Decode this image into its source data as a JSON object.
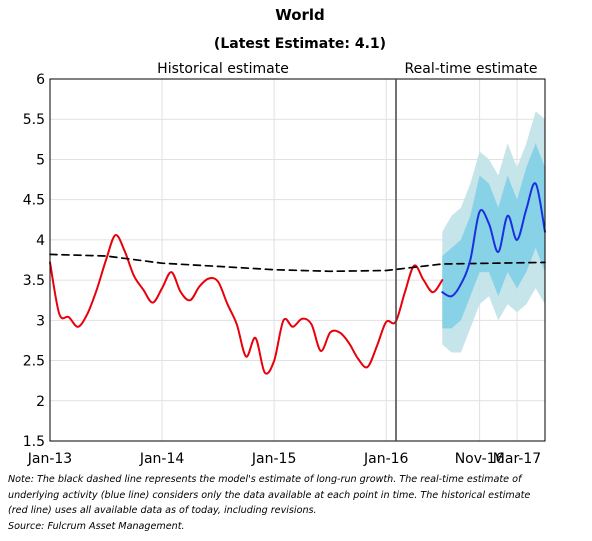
{
  "chart_data": {
    "type": "line",
    "title": "World",
    "subtitle": "(Latest Estimate: 4.1)",
    "panels": [
      "Historical estimate",
      "Real-time estimate"
    ],
    "ylim": [
      1.5,
      6
    ],
    "yticks": [
      1.5,
      2,
      2.5,
      3,
      3.5,
      4,
      4.5,
      5,
      5.5,
      6
    ],
    "grid": true,
    "x_start": "Jan-13",
    "x_end": "Jun-17",
    "historical_xticks": [
      "Jan-13",
      "Jan-14",
      "Jan-15",
      "Jan-16"
    ],
    "realtime_xticks": [
      "Nov-16",
      "Mar-17"
    ],
    "series": [
      {
        "name": "Historical estimate",
        "color": "#e8000b",
        "x": [
          "Jan-13",
          "Feb-13",
          "Mar-13",
          "Apr-13",
          "May-13",
          "Jun-13",
          "Jul-13",
          "Aug-13",
          "Sep-13",
          "Oct-13",
          "Nov-13",
          "Dec-13",
          "Jan-14",
          "Feb-14",
          "Mar-14",
          "Apr-14",
          "May-14",
          "Jun-14",
          "Jul-14",
          "Aug-14",
          "Sep-14",
          "Oct-14",
          "Nov-14",
          "Dec-14",
          "Jan-15",
          "Feb-15",
          "Mar-15",
          "Apr-15",
          "May-15",
          "Jun-15",
          "Jul-15",
          "Aug-15",
          "Sep-15",
          "Oct-15",
          "Nov-15",
          "Dec-15",
          "Jan-16",
          "Feb-16",
          "Mar-16",
          "Apr-16",
          "May-16",
          "Jun-16",
          "Jul-16"
        ],
        "values": [
          3.72,
          3.08,
          3.04,
          2.92,
          3.08,
          3.38,
          3.75,
          4.06,
          3.86,
          3.55,
          3.38,
          3.22,
          3.4,
          3.6,
          3.35,
          3.25,
          3.42,
          3.52,
          3.48,
          3.2,
          2.95,
          2.55,
          2.78,
          2.35,
          2.5,
          3.0,
          2.92,
          3.02,
          2.95,
          2.62,
          2.85,
          2.85,
          2.72,
          2.52,
          2.42,
          2.68,
          2.98,
          2.98,
          3.35,
          3.68,
          3.5,
          3.35,
          3.5
        ]
      },
      {
        "name": "Long-run growth",
        "color": "#000000",
        "dashed": true,
        "x": [
          "Jan-13",
          "Jul-13",
          "Jan-14",
          "Jul-14",
          "Jan-15",
          "Jul-15",
          "Jan-16",
          "Jul-16",
          "Jun-17"
        ],
        "values": [
          3.82,
          3.8,
          3.71,
          3.67,
          3.63,
          3.61,
          3.62,
          3.7,
          3.72
        ]
      },
      {
        "name": "Real-time estimate",
        "color": "#1a2fe0",
        "x": [
          "Jul-16",
          "Aug-16",
          "Sep-16",
          "Oct-16",
          "Nov-16",
          "Dec-16",
          "Jan-17",
          "Feb-17",
          "Mar-17",
          "Apr-17",
          "May-17",
          "Jun-17"
        ],
        "values": [
          3.35,
          3.3,
          3.45,
          3.75,
          4.35,
          4.2,
          3.85,
          4.3,
          4.0,
          4.38,
          4.7,
          4.1
        ]
      }
    ],
    "bands": [
      {
        "color": "#bfe2e8",
        "lower": [
          2.7,
          2.6,
          2.6,
          2.9,
          3.2,
          3.3,
          3.0,
          3.2,
          3.1,
          3.2,
          3.4,
          3.2
        ],
        "upper": [
          4.1,
          4.3,
          4.4,
          4.7,
          5.1,
          5.0,
          4.8,
          5.2,
          4.9,
          5.2,
          5.6,
          5.5
        ]
      },
      {
        "color": "#7fcfe6",
        "lower": [
          2.9,
          2.9,
          3.0,
          3.3,
          3.6,
          3.6,
          3.3,
          3.6,
          3.4,
          3.6,
          3.9,
          3.6
        ],
        "upper": [
          3.8,
          3.9,
          4.0,
          4.3,
          4.8,
          4.7,
          4.4,
          4.8,
          4.5,
          4.9,
          5.2,
          4.9
        ]
      }
    ]
  },
  "note": {
    "line1": "Note: The black dashed line represents the model's estimate of long-run growth. The real-time estimate of",
    "line2": "underlying activity (blue line) considers only the data available at each point in time. The historical estimate",
    "line3": "(red line) uses all available data as of today, including revisions.",
    "source": "Source: Fulcrum Asset Management."
  }
}
